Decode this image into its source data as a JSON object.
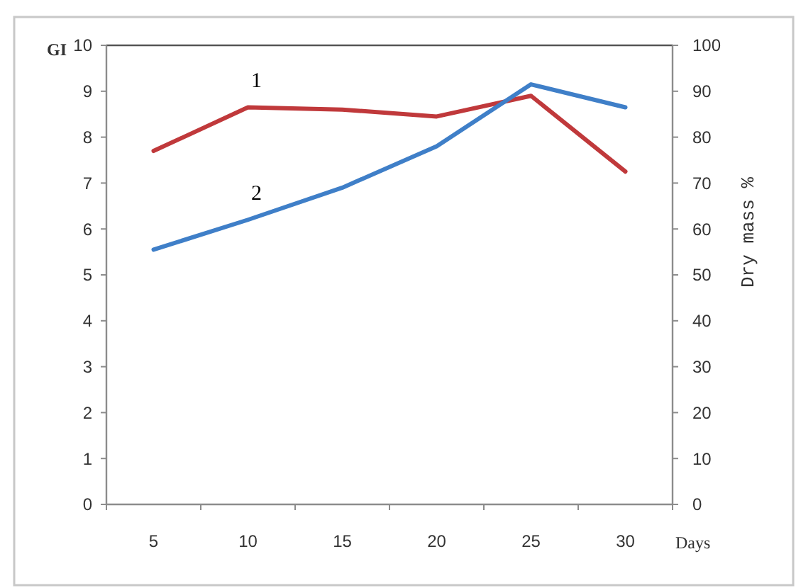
{
  "chart_data": {
    "type": "line",
    "categories": [
      "5",
      "10",
      "15",
      "20",
      "25",
      "30"
    ],
    "xlabel": "Days",
    "ylabel": "GI",
    "y2label": "Dry mass %",
    "series": [
      {
        "name": "1",
        "color": "#c0393b",
        "values": [
          7.7,
          8.65,
          8.6,
          8.45,
          8.9,
          7.25
        ]
      },
      {
        "name": "2",
        "color": "#3f7fc8",
        "values": [
          55.5,
          62,
          69,
          78,
          91.5,
          86.5
        ],
        "axis": "y2"
      }
    ],
    "ylim": [
      0,
      10
    ],
    "yticks": [
      0,
      1,
      2,
      3,
      4,
      5,
      6,
      7,
      8,
      9,
      10
    ],
    "y2lim": [
      0,
      100
    ],
    "y2ticks": [
      0,
      10,
      20,
      30,
      40,
      50,
      60,
      70,
      80,
      90,
      100
    ],
    "grid": false,
    "marker": "none",
    "line_style": "solid"
  }
}
